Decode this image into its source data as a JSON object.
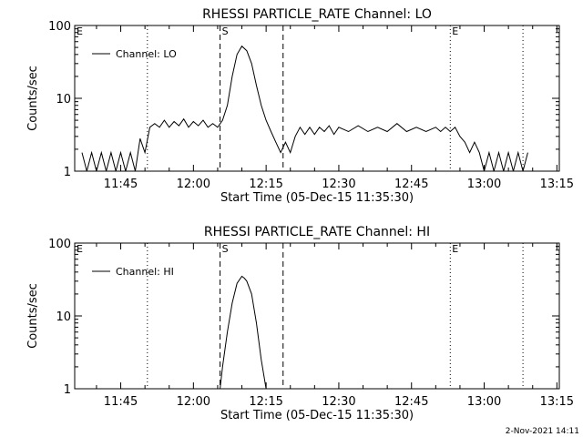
{
  "footer": {
    "timestamp": "2-Nov-2021 14:11"
  },
  "colors": {
    "line": "#000000",
    "background": "#ffffff"
  },
  "chart_data": [
    {
      "type": "line",
      "title": "RHESSI PARTICLE_RATE Channel: LO",
      "xlabel": "Start Time (05-Dec-15 11:35:30)",
      "ylabel": "Counts/sec",
      "y_scale": "log",
      "ylim": [
        1,
        100
      ],
      "xlim": [
        "11:35:30",
        "13:15:30"
      ],
      "x_ticks": [
        "11:45",
        "12:00",
        "12:15",
        "12:30",
        "12:45",
        "13:00",
        "13:15"
      ],
      "y_ticks": [
        "1",
        "10",
        "100"
      ],
      "legend": {
        "position": "top-left",
        "entries": [
          "Channel: LO"
        ]
      },
      "grid": false,
      "markers": [
        {
          "label": "E",
          "time": "11:35:30",
          "style": "dotted"
        },
        {
          "label": "",
          "time": "11:50:30",
          "style": "dotted"
        },
        {
          "label": "S",
          "time": "12:05:30",
          "style": "dashed"
        },
        {
          "label": "",
          "time": "12:18:30",
          "style": "dashed"
        },
        {
          "label": "E",
          "time": "12:53:00",
          "style": "dotted"
        },
        {
          "label": "",
          "time": "13:08:00",
          "style": "dotted"
        }
      ],
      "series": [
        {
          "name": "Channel: LO",
          "x": [
            "11:37",
            "11:38",
            "11:39",
            "11:40",
            "11:41",
            "11:42",
            "11:43",
            "11:44",
            "11:45",
            "11:46",
            "11:47",
            "11:48",
            "11:49",
            "11:50",
            "11:51",
            "11:52",
            "11:53",
            "11:54",
            "11:55",
            "11:56",
            "11:57",
            "11:58",
            "11:59",
            "12:00",
            "12:01",
            "12:02",
            "12:03",
            "12:04",
            "12:05",
            "12:06",
            "12:07",
            "12:08",
            "12:09",
            "12:10",
            "12:11",
            "12:12",
            "12:13",
            "12:14",
            "12:15",
            "12:16",
            "12:17",
            "12:18",
            "12:19",
            "12:20",
            "12:21",
            "12:22",
            "12:23",
            "12:24",
            "12:25",
            "12:26",
            "12:27",
            "12:28",
            "12:29",
            "12:30",
            "12:32",
            "12:34",
            "12:36",
            "12:38",
            "12:40",
            "12:42",
            "12:44",
            "12:46",
            "12:48",
            "12:50",
            "12:51",
            "12:52",
            "12:53",
            "12:54",
            "12:55",
            "12:56",
            "12:57",
            "12:58",
            "12:59",
            "13:00",
            "13:01",
            "13:02",
            "13:03",
            "13:04",
            "13:05",
            "13:06",
            "13:07",
            "13:08",
            "13:09"
          ],
          "values": [
            1.8,
            1.0,
            1.8,
            1.0,
            1.8,
            1.0,
            1.8,
            1.0,
            1.8,
            1.0,
            1.8,
            1.0,
            2.8,
            1.8,
            4.0,
            4.5,
            4.0,
            5.0,
            4.0,
            4.8,
            4.2,
            5.2,
            4.0,
            4.8,
            4.2,
            5.0,
            4.0,
            4.5,
            4.0,
            5.0,
            8.0,
            20.0,
            40.0,
            52.0,
            45.0,
            30.0,
            15.0,
            8.0,
            5.0,
            3.5,
            2.5,
            1.8,
            2.5,
            1.8,
            3.0,
            4.0,
            3.2,
            4.0,
            3.2,
            4.0,
            3.5,
            4.2,
            3.2,
            4.0,
            3.5,
            4.2,
            3.5,
            4.0,
            3.5,
            4.5,
            3.5,
            4.0,
            3.5,
            4.0,
            3.5,
            4.0,
            3.5,
            4.0,
            3.0,
            2.5,
            1.8,
            2.5,
            1.8,
            1.0,
            1.8,
            1.0,
            1.8,
            1.0,
            1.8,
            1.0,
            1.8,
            1.0,
            1.8
          ]
        }
      ]
    },
    {
      "type": "line",
      "title": "RHESSI PARTICLE_RATE Channel: HI",
      "xlabel": "Start Time (05-Dec-15 11:35:30)",
      "ylabel": "Counts/sec",
      "y_scale": "log",
      "ylim": [
        1,
        100
      ],
      "xlim": [
        "11:35:30",
        "13:15:30"
      ],
      "x_ticks": [
        "11:45",
        "12:00",
        "12:15",
        "12:30",
        "12:45",
        "13:00",
        "13:15"
      ],
      "y_ticks": [
        "1",
        "10",
        "100"
      ],
      "legend": {
        "position": "top-left",
        "entries": [
          "Channel: HI"
        ]
      },
      "grid": false,
      "markers": [
        {
          "label": "E",
          "time": "11:35:30",
          "style": "dotted"
        },
        {
          "label": "",
          "time": "11:50:30",
          "style": "dotted"
        },
        {
          "label": "S",
          "time": "12:05:30",
          "style": "dashed"
        },
        {
          "label": "",
          "time": "12:18:30",
          "style": "dashed"
        },
        {
          "label": "E",
          "time": "12:53:00",
          "style": "dotted"
        },
        {
          "label": "",
          "time": "13:08:00",
          "style": "dotted"
        }
      ],
      "series": [
        {
          "name": "Channel: HI",
          "x": [
            "12:05:30",
            "12:06",
            "12:07",
            "12:08",
            "12:09",
            "12:10",
            "12:10:30",
            "12:11",
            "12:12",
            "12:13",
            "12:14",
            "12:15"
          ],
          "values": [
            1.0,
            2.0,
            6.0,
            15.0,
            28.0,
            35.0,
            33.0,
            30.0,
            20.0,
            8.0,
            2.5,
            1.0
          ]
        }
      ]
    }
  ]
}
